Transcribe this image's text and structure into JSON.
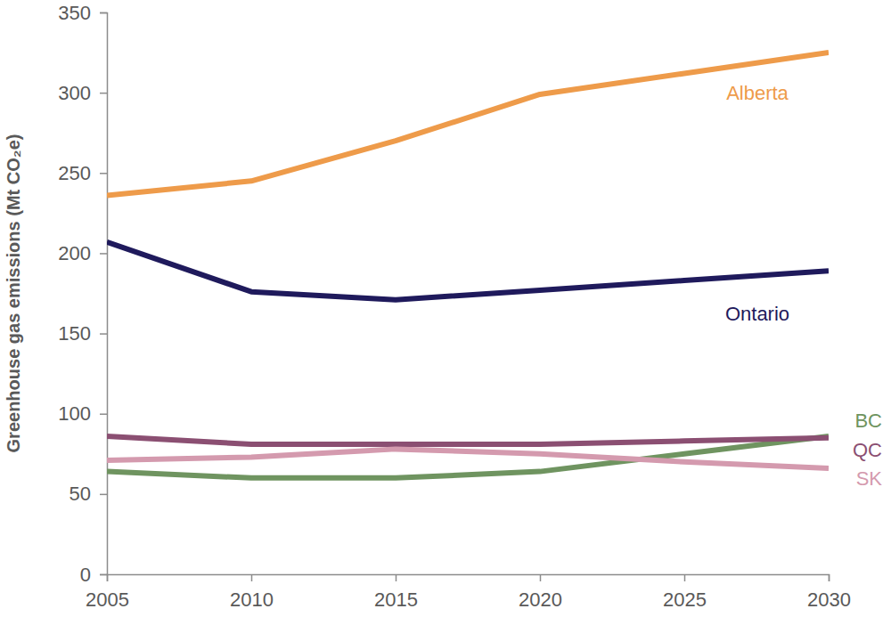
{
  "chart_data": {
    "type": "line",
    "y_label": "Greenhouse gas emissions (Mt CO₂e)",
    "x": [
      2005,
      2010,
      2015,
      2020,
      2025,
      2030
    ],
    "xlim": [
      2005,
      2030
    ],
    "xticks": [
      2005,
      2010,
      2015,
      2020,
      2025,
      2030
    ],
    "ylim": [
      0,
      350
    ],
    "yticks": [
      0,
      50,
      100,
      150,
      200,
      250,
      300,
      350
    ],
    "grid": false,
    "series": [
      {
        "name": "Alberta",
        "color": "#ee9b4a",
        "values": [
          236,
          245,
          270,
          299,
          312,
          325
        ]
      },
      {
        "name": "Ontario",
        "color": "#1f1a5c",
        "values": [
          207,
          176,
          171,
          177,
          183,
          189
        ]
      },
      {
        "name": "BC",
        "color": "#6f9460",
        "values": [
          64,
          60,
          60,
          64,
          75,
          86
        ]
      },
      {
        "name": "QC",
        "color": "#8b4f72",
        "values": [
          86,
          81,
          81,
          81,
          83,
          85
        ]
      },
      {
        "name": "SK",
        "color": "#d49aae",
        "values": [
          71,
          73,
          78,
          75,
          70,
          66
        ]
      }
    ]
  }
}
